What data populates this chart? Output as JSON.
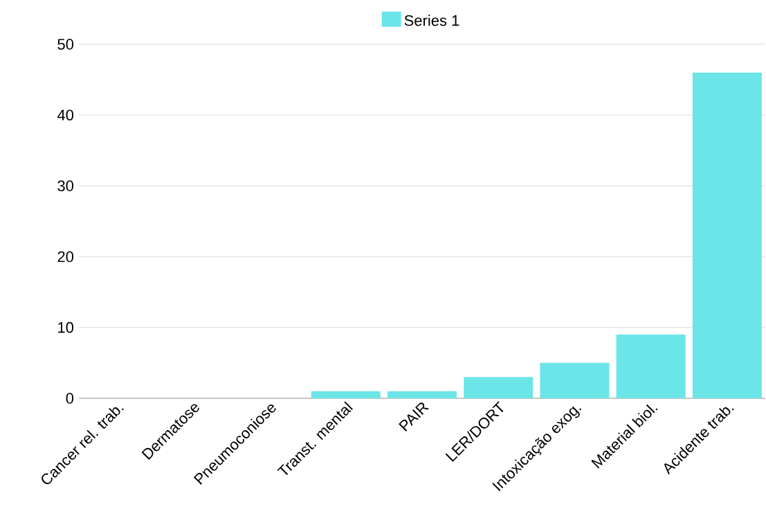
{
  "chart_data": {
    "type": "bar",
    "categories": [
      "Cancer rel. trab.",
      "Dermatose",
      "Pneumoconiose",
      "Transt. mental",
      "PAIR",
      "LER/DORT",
      "Intoxicação exog.",
      "Material biol.",
      "Acidente trab."
    ],
    "series": [
      {
        "name": "Series 1",
        "color": "#6ce5e8",
        "values": [
          0,
          0,
          0,
          1,
          1,
          3,
          5,
          9,
          46
        ]
      }
    ],
    "ylim": [
      0,
      50
    ],
    "yticks": [
      0,
      10,
      20,
      30,
      40,
      50
    ],
    "grid": "y",
    "legend": "top"
  }
}
